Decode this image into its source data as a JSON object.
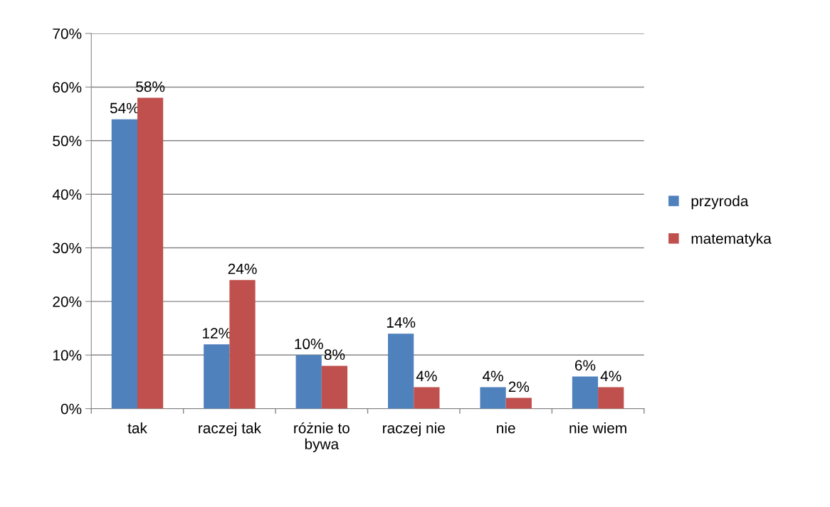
{
  "chart_data": {
    "type": "bar",
    "categories": [
      "tak",
      "raczej tak",
      "różnie to\nbywa",
      "raczej nie",
      "nie",
      "nie wiem"
    ],
    "series": [
      {
        "name": "przyroda",
        "color": "#4f81bd",
        "values": [
          54,
          12,
          10,
          14,
          4,
          6
        ],
        "value_labels": [
          "54%",
          "12%",
          "10%",
          "14%",
          "4%",
          "6%"
        ]
      },
      {
        "name": "matematyka",
        "color": "#c0504d",
        "values": [
          58,
          24,
          8,
          4,
          2,
          4
        ],
        "value_labels": [
          "58%",
          "24%",
          "8%",
          "4%",
          "2%",
          "4%"
        ]
      }
    ],
    "ylim": [
      0,
      70
    ],
    "yticks": [
      {
        "value": 0,
        "label": "0%"
      },
      {
        "value": 10,
        "label": "10%"
      },
      {
        "value": 20,
        "label": "20%"
      },
      {
        "value": 30,
        "label": "30%"
      },
      {
        "value": 40,
        "label": "40%"
      },
      {
        "value": 50,
        "label": "50%"
      },
      {
        "value": 60,
        "label": "60%"
      },
      {
        "value": 70,
        "label": "70%"
      }
    ],
    "grid": "y",
    "legend": "right"
  }
}
